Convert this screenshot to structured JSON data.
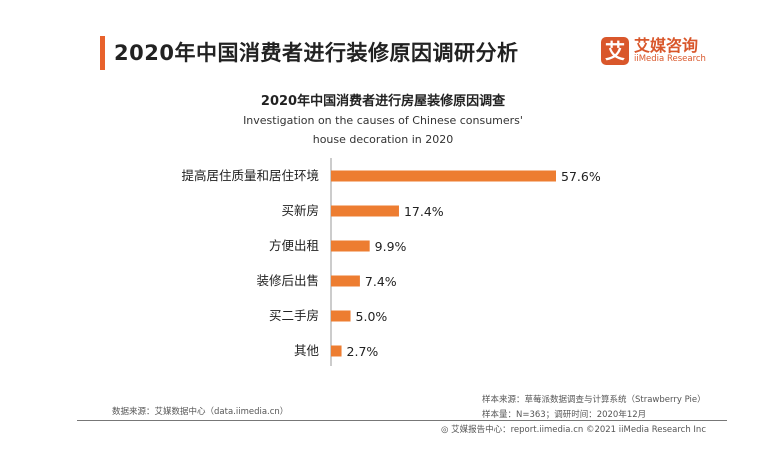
{
  "header": {
    "title": "2020年中国消费者进行装修原因调研分析"
  },
  "logo": {
    "mark": "艾",
    "cn": "艾媒咨询",
    "en": "iiMedia Research"
  },
  "chart_data": {
    "type": "bar",
    "orientation": "horizontal",
    "title": "2020年中国消费者进行房屋装修原因调查",
    "subtitle_line1": "Investigation on the causes of Chinese consumers'",
    "subtitle_line2": "house decoration in 2020",
    "categories": [
      "提高居住质量和居住环境",
      "买新房",
      "方便出租",
      "装修后出售",
      "买二手房",
      "其他"
    ],
    "values": [
      57.6,
      17.4,
      9.9,
      7.4,
      5.0,
      2.7
    ],
    "value_labels": [
      "57.6%",
      "17.4%",
      "9.9%",
      "7.4%",
      "5.0%",
      "2.7%"
    ],
    "unit": "%",
    "bar_color": "#ed7d31",
    "grid": false
  },
  "footer": {
    "data_source": "数据来源：艾媒数据中心（data.iimedia.cn）",
    "sample_source": "样本来源：草莓派数据调查与计算系统（Strawberry Pie）",
    "sample_size": "样本量：N=363；调研时间：2020年12月",
    "copyright": "艾媒报告中心：report.iimedia.cn   ©2021  iiMedia Research  Inc"
  }
}
